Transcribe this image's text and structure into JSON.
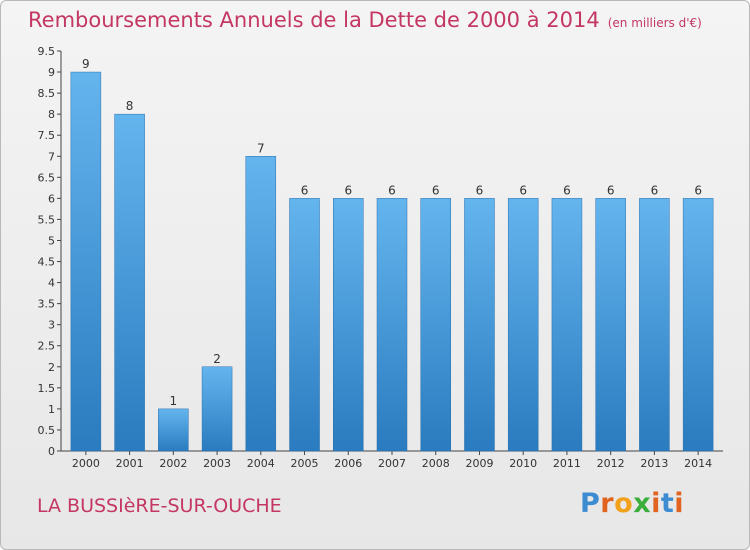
{
  "header": {
    "title": "Remboursements Annuels de la Dette de 2000 à 2014",
    "unit": "(en milliers d'€)"
  },
  "footer": {
    "city": "LA BUSSIèRE-SUR-OUCHE",
    "logo": "Proxiti"
  },
  "colors": {
    "accent": "#c43763",
    "bar_top": "#64b5ee",
    "bar_bottom": "#2a7bbf",
    "logo_letters": [
      "#3d8bd1",
      "#e0641f",
      "#f2a21a",
      "#3cae3c",
      "#e0641f",
      "#3d8bd1",
      "#e0641f"
    ]
  },
  "chart_data": {
    "type": "bar",
    "title": "Remboursements Annuels de la Dette de 2000 à 2014",
    "xlabel": "",
    "ylabel": "",
    "categories": [
      "2000",
      "2001",
      "2002",
      "2003",
      "2004",
      "2005",
      "2006",
      "2007",
      "2008",
      "2009",
      "2010",
      "2011",
      "2012",
      "2013",
      "2014"
    ],
    "values": [
      9,
      8,
      1,
      2,
      7,
      6,
      6,
      6,
      6,
      6,
      6,
      6,
      6,
      6,
      6
    ],
    "data_labels": [
      "9",
      "8",
      "1",
      "2",
      "7",
      "6",
      "6",
      "6",
      "6",
      "6",
      "6",
      "6",
      "6",
      "6",
      "6"
    ],
    "ylim": [
      0,
      9.5
    ],
    "yticks": [
      0,
      0.5,
      1,
      1.5,
      2,
      2.5,
      3,
      3.5,
      4,
      4.5,
      5,
      5.5,
      6,
      6.5,
      7,
      7.5,
      8,
      8.5,
      9,
      9.5
    ],
    "ytick_labels": [
      "0",
      "0.5",
      "1",
      "1.5",
      "2",
      "2.5",
      "3",
      "3.5",
      "4",
      "4.5",
      "5",
      "5.5",
      "6",
      "6.5",
      "7",
      "7.5",
      "8",
      "8.5",
      "9",
      "9.5"
    ],
    "grid": false
  }
}
